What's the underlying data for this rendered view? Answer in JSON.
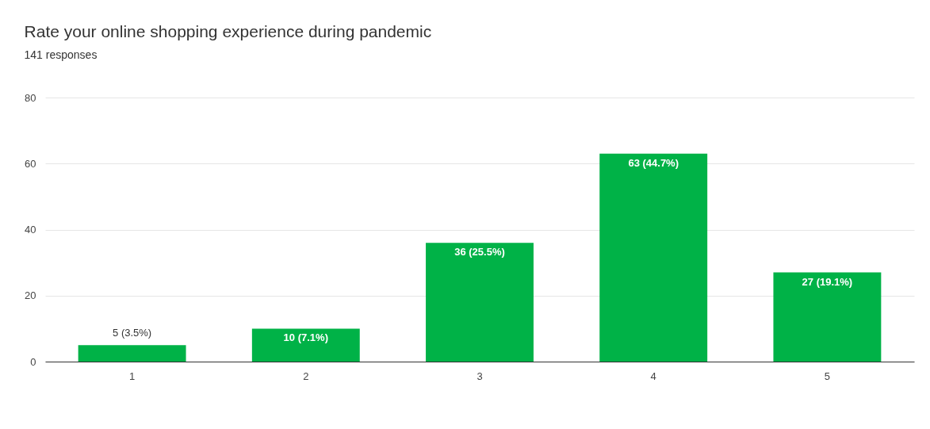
{
  "chart_data": {
    "type": "bar",
    "title": "Rate your online shopping experience during pandemic",
    "subtitle": "141 responses",
    "categories": [
      "1",
      "2",
      "3",
      "4",
      "5"
    ],
    "values": [
      5,
      10,
      36,
      63,
      27
    ],
    "value_labels": [
      "5 (3.5%)",
      "10 (7.1%)",
      "36 (25.5%)",
      "63 (44.7%)",
      "27 (19.1%)"
    ],
    "color": "#00b247",
    "ylim": [
      0,
      80
    ],
    "yticks": [
      0,
      20,
      40,
      60,
      80
    ],
    "grid": "y"
  }
}
